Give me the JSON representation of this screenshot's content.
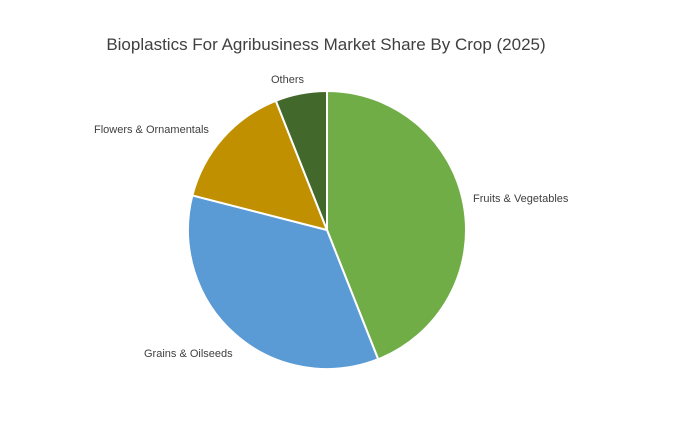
{
  "chart_data": {
    "type": "pie",
    "title": "Bioplastics For Agribusiness Market Share By Crop (2025)",
    "start_angle_deg": 0,
    "direction": "clockwise",
    "legend": "none",
    "slices": [
      {
        "label": "Fruits & Vegetables",
        "value": 44,
        "color": "#70ad47"
      },
      {
        "label": "Grains & Oilseeds",
        "value": 35,
        "color": "#5b9bd5"
      },
      {
        "label": "Flowers & Ornamentals",
        "value": 15,
        "color": "#c09000"
      },
      {
        "label": "Others",
        "value": 6,
        "color": "#43682b"
      }
    ]
  }
}
